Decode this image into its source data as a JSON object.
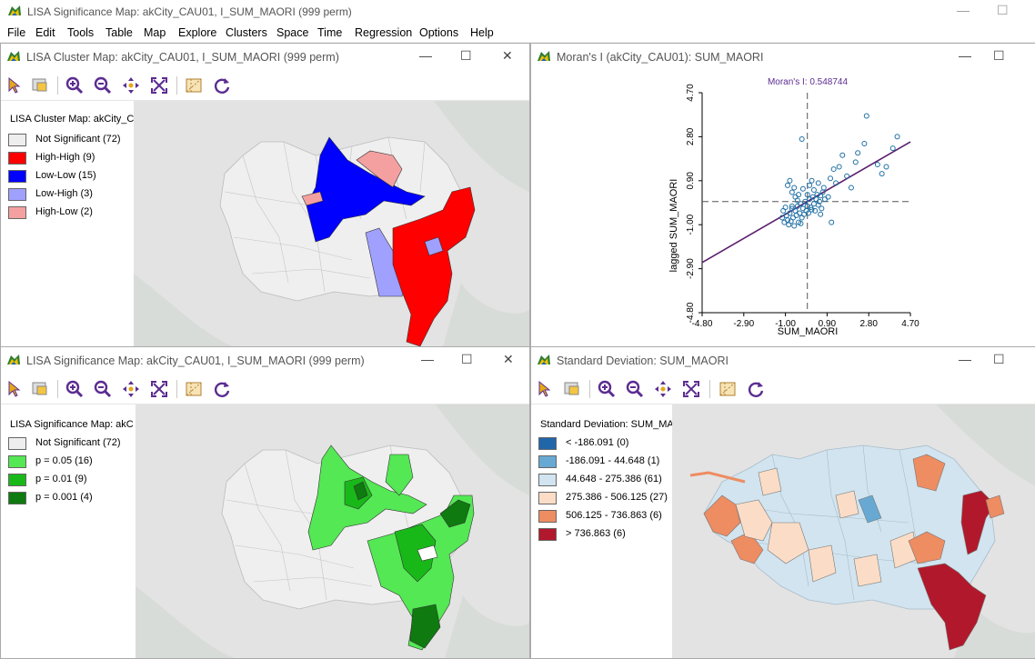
{
  "app": {
    "title": "LISA Significance Map: akCity_CAU01, I_SUM_MAORI (999 perm)",
    "window_controls": [
      "—",
      "☐"
    ]
  },
  "menu": [
    "File",
    "Edit",
    "Tools",
    "Table",
    "Map",
    "Explore",
    "Clusters",
    "Space",
    "Time",
    "Regression",
    "Options",
    "Help"
  ],
  "windows": {
    "cluster": {
      "title": "LISA Cluster Map: akCity_CAU01, I_SUM_MAORI (999 perm)",
      "legend_title": "LISA Cluster Map: akCity_CA",
      "legend": [
        {
          "label": "Not Significant (72)",
          "color": "#eeeeee"
        },
        {
          "label": "High-High (9)",
          "color": "#ff0000"
        },
        {
          "label": "Low-Low (15)",
          "color": "#0000ff"
        },
        {
          "label": "Low-High (3)",
          "color": "#a0a0ff"
        },
        {
          "label": "High-Low (2)",
          "color": "#f4a0a0"
        }
      ]
    },
    "moran": {
      "title": "Moran's I (akCity_CAU01): SUM_MAORI",
      "stat_label": "Moran's I: 0.548744",
      "xlabel": "SUM_MAORI",
      "ylabel": "lagged SUM_MAORI",
      "xticks": [
        "-4.80",
        "-2.90",
        "-1.00",
        "0.90",
        "2.80",
        "4.70"
      ],
      "yticks": [
        "-4.80",
        "-2.90",
        "-1.00",
        "0.90",
        "2.80",
        "4.70"
      ]
    },
    "significance": {
      "title": "LISA Significance Map: akCity_CAU01, I_SUM_MAORI (999 perm)",
      "legend_title": "LISA Significance Map: akC",
      "legend": [
        {
          "label": "Not Significant (72)",
          "color": "#eeeeee"
        },
        {
          "label": "p = 0.05 (16)",
          "color": "#54e854"
        },
        {
          "label": "p = 0.01 (9)",
          "color": "#19b819"
        },
        {
          "label": "p = 0.001 (4)",
          "color": "#0f7a0f"
        }
      ]
    },
    "stddev": {
      "title": "Standard Deviation: SUM_MAORI",
      "legend_title": "Standard Deviation: SUM_MAO",
      "legend": [
        {
          "label": "< -186.091 (0)",
          "color": "#2266aa"
        },
        {
          "label": "-186.091 - 44.648 (1)",
          "color": "#67a9d3"
        },
        {
          "label": "44.648 - 275.386 (61)",
          "color": "#d1e4ef"
        },
        {
          "label": "275.386 - 506.125 (27)",
          "color": "#fbddc7"
        },
        {
          "label": "506.125 - 736.863 (6)",
          "color": "#ee8c62"
        },
        {
          "label": "> 736.863 (6)",
          "color": "#b2182b"
        }
      ]
    }
  },
  "chart_data": {
    "type": "scatter",
    "title": "Moran's I: 0.548744",
    "xlabel": "SUM_MAORI",
    "ylabel": "lagged SUM_MAORI",
    "xlim": [
      -4.8,
      4.7
    ],
    "ylim": [
      -4.8,
      4.7
    ],
    "regression_slope": 0.548744,
    "points": [
      [
        -1.15,
        -0.7
      ],
      [
        -1.05,
        -0.9
      ],
      [
        -0.95,
        -0.6
      ],
      [
        -0.9,
        -0.8
      ],
      [
        -0.85,
        -1.0
      ],
      [
        -0.8,
        -0.5
      ],
      [
        -0.75,
        -0.85
      ],
      [
        -0.7,
        -0.3
      ],
      [
        -0.65,
        -0.7
      ],
      [
        -0.6,
        -1.05
      ],
      [
        -0.55,
        -0.4
      ],
      [
        -0.5,
        -0.6
      ],
      [
        -0.45,
        -0.2
      ],
      [
        -0.4,
        -0.9
      ],
      [
        -0.35,
        -0.5
      ],
      [
        -0.3,
        -0.1
      ],
      [
        -0.25,
        -0.7
      ],
      [
        -0.2,
        -0.3
      ],
      [
        -0.15,
        -0.55
      ],
      [
        -0.1,
        0.0
      ],
      [
        -0.05,
        -0.4
      ],
      [
        0.0,
        -0.2
      ],
      [
        0.05,
        -0.5
      ],
      [
        0.1,
        0.1
      ],
      [
        0.15,
        -0.25
      ],
      [
        0.2,
        -0.35
      ],
      [
        0.25,
        0.2
      ],
      [
        0.3,
        -0.1
      ],
      [
        0.35,
        -0.4
      ],
      [
        0.4,
        0.1
      ],
      [
        0.45,
        0.3
      ],
      [
        0.5,
        -0.15
      ],
      [
        0.55,
        0.0
      ],
      [
        0.6,
        0.25
      ],
      [
        0.65,
        -0.3
      ],
      [
        0.7,
        0.4
      ],
      [
        -0.9,
        0.7
      ],
      [
        -0.7,
        0.4
      ],
      [
        -0.55,
        0.2
      ],
      [
        -0.8,
        0.9
      ],
      [
        -0.6,
        0.6
      ],
      [
        -0.4,
        0.3
      ],
      [
        -0.2,
        0.55
      ],
      [
        0.0,
        0.3
      ],
      [
        0.1,
        0.7
      ],
      [
        0.3,
        0.5
      ],
      [
        0.5,
        0.8
      ],
      [
        0.75,
        0.6
      ],
      [
        0.95,
        0.2
      ],
      [
        1.05,
        1.0
      ],
      [
        1.2,
        1.4
      ],
      [
        1.3,
        0.8
      ],
      [
        1.45,
        1.5
      ],
      [
        1.6,
        2.0
      ],
      [
        1.8,
        1.1
      ],
      [
        2.0,
        0.6
      ],
      [
        2.2,
        1.7
      ],
      [
        2.3,
        2.1
      ],
      [
        2.6,
        2.5
      ],
      [
        3.2,
        1.6
      ],
      [
        3.4,
        1.2
      ],
      [
        3.6,
        1.5
      ],
      [
        3.9,
        2.3
      ],
      [
        4.1,
        2.8
      ],
      [
        2.7,
        3.7
      ],
      [
        -0.25,
        2.7
      ],
      [
        1.1,
        -0.9
      ],
      [
        -1.1,
        -0.4
      ],
      [
        -0.3,
        -0.95
      ],
      [
        -0.7,
        -0.2
      ],
      [
        0.2,
        0.9
      ],
      [
        -0.45,
        0.05
      ],
      [
        0.8,
        0.1
      ],
      [
        -1.0,
        -0.25
      ],
      [
        0.6,
        -0.55
      ]
    ]
  }
}
